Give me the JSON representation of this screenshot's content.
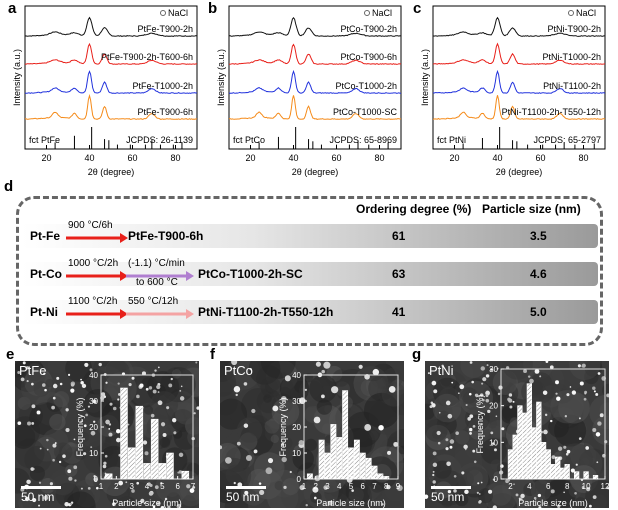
{
  "panel_letters": {
    "a": "a",
    "b": "b",
    "c": "c",
    "d": "d",
    "e": "e",
    "f": "f",
    "g": "g"
  },
  "colors": {
    "black": "#111111",
    "red": "#e8201a",
    "blue": "#2233dd",
    "orange": "#f58b1a"
  },
  "xrd_axis": {
    "ylabel": "Intensity (a.u.)",
    "xlabel": "2θ (degree)",
    "ticks": [
      "20",
      "40",
      "60",
      "80"
    ]
  },
  "chart_data": [
    {
      "type": "line",
      "panel": "a",
      "legend": "NaCl",
      "series": [
        "PtFe-T900-2h",
        "PtFe-T900-2h-T600-6h",
        "PtFe-T1000-2h",
        "PtFe-T900-6h"
      ],
      "reference": "fct PtFe",
      "jcpds": "JCPDS: 26-1139",
      "xlim": [
        10,
        90
      ],
      "xlabel": "2θ (degree)",
      "ylabel": "Intensity (a.u.)"
    },
    {
      "type": "line",
      "panel": "b",
      "legend": "NaCl",
      "series": [
        "PtCo-T900-2h",
        "PtCo-T900-6h",
        "PtCo-T1000-2h",
        "PtCo-T1000-SC"
      ],
      "reference": "fct PtCo",
      "jcpds": "JCPDS: 65-8969",
      "xlim": [
        10,
        90
      ],
      "xlabel": "2θ (degree)",
      "ylabel": "Intensity (a.u.)"
    },
    {
      "type": "line",
      "panel": "c",
      "legend": "NaCl",
      "series": [
        "PtNi-T900-2h",
        "PtNi-T1000-2h",
        "PtNi-T1100-2h",
        "PtNi-T1100-2h-T550-12h"
      ],
      "reference": "fct PtNi",
      "jcpds": "JCPDS: 65-2797",
      "xlim": [
        10,
        90
      ],
      "xlabel": "2θ (degree)",
      "ylabel": "Intensity (a.u.)"
    },
    {
      "type": "bar",
      "panel": "e",
      "title": "PtFe",
      "categories": [
        "1.5",
        "2.5",
        "3",
        "3.5",
        "4",
        "4.5",
        "5",
        "5.5",
        "6",
        "6.5"
      ],
      "values": [
        2,
        35,
        12,
        28,
        6,
        23,
        6,
        10,
        0,
        3
      ],
      "xlabel": "Particle size (nm)",
      "ylabel": "Frequency (%)",
      "ylim": [
        0,
        40
      ],
      "xticks": [
        "1",
        "2",
        "3",
        "4",
        "5",
        "6",
        "7"
      ],
      "yticks": [
        "0",
        "10",
        "20",
        "30",
        "40"
      ]
    },
    {
      "type": "bar",
      "panel": "f",
      "title": "PtCo",
      "categories": [
        "1.5",
        "2",
        "2.5",
        "3",
        "3.5",
        "4",
        "4.5",
        "5",
        "5.5",
        "6",
        "6.5",
        "7",
        "7.5",
        "8"
      ],
      "values": [
        2,
        0,
        15,
        10,
        21,
        16,
        34,
        12,
        15,
        10,
        8,
        5,
        2,
        1
      ],
      "xlabel": "Particle size (nm)",
      "ylabel": "Frequency (%)",
      "ylim": [
        0,
        40
      ],
      "xticks": [
        "1",
        "2",
        "3",
        "4",
        "5",
        "6",
        "7",
        "8",
        "9"
      ],
      "yticks": [
        "0",
        "10",
        "20",
        "30",
        "40"
      ]
    },
    {
      "type": "bar",
      "panel": "g",
      "title": "PtNi",
      "categories": [
        "2",
        "2.5",
        "3",
        "3.5",
        "4",
        "4.5",
        "5",
        "5.5",
        "6",
        "6.5",
        "7",
        "7.5",
        "8",
        "9",
        "10",
        "11"
      ],
      "values": [
        8,
        12,
        20,
        18,
        26,
        14,
        21,
        10,
        8,
        4,
        6,
        3,
        4,
        2,
        2,
        1
      ],
      "xlabel": "Particle size (nm)",
      "ylabel": "Frequency (%)",
      "ylim": [
        0,
        30
      ],
      "xticks": [
        "2",
        "4",
        "6",
        "8",
        "10",
        "12"
      ],
      "yticks": [
        "0",
        "10",
        "20",
        "30"
      ]
    }
  ],
  "table": {
    "col_order": "Ordering degree (%)",
    "col_size": "Particle size (nm)",
    "rows": [
      {
        "precursor": "Pt-Fe",
        "step1": "900 °C/6h",
        "step2": "",
        "step2b": "",
        "product": "PtFe-T900-6h",
        "order": "61",
        "size": "3.5"
      },
      {
        "precursor": "Pt-Co",
        "step1": "1000 °C/2h",
        "step2": "(-1.1) °C/min",
        "step2b": "to 600 °C",
        "product": "PtCo-T1000-2h-SC",
        "order": "63",
        "size": "4.6"
      },
      {
        "precursor": "Pt-Ni",
        "step1": "1100 °C/2h",
        "step2": "550 °C/12h",
        "step2b": "",
        "product": "PtNi-T1100-2h-T550-12h",
        "order": "41",
        "size": "5.0"
      }
    ]
  },
  "images": [
    {
      "label": "PtFe",
      "scale": "50 nm"
    },
    {
      "label": "PtCo",
      "scale": "50 nm"
    },
    {
      "label": "PtNi",
      "scale": "50 nm"
    }
  ]
}
